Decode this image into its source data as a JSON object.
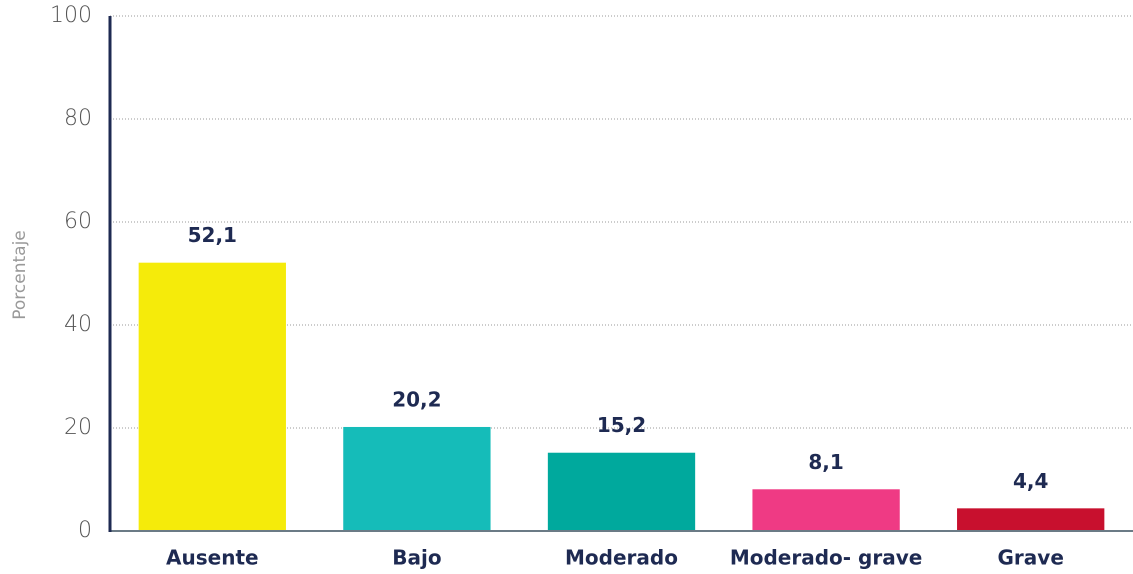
{
  "chart_data": {
    "type": "bar",
    "y_label": "Porcentaje",
    "categories": [
      "Ausente",
      "Bajo",
      "Moderado",
      "Moderado- grave",
      "Grave"
    ],
    "values": [
      52.1,
      20.2,
      15.2,
      8.1,
      4.4
    ],
    "value_labels": [
      "52,1",
      "20,2",
      "15,2",
      "8,1",
      "4,4"
    ],
    "colors": [
      "#f5eb0a",
      "#15bcb9",
      "#00a99d",
      "#ef3a84",
      "#c8102e"
    ],
    "ylim": [
      0,
      100
    ],
    "yticks": [
      0,
      20,
      40,
      60,
      80,
      100
    ],
    "grid": true
  }
}
